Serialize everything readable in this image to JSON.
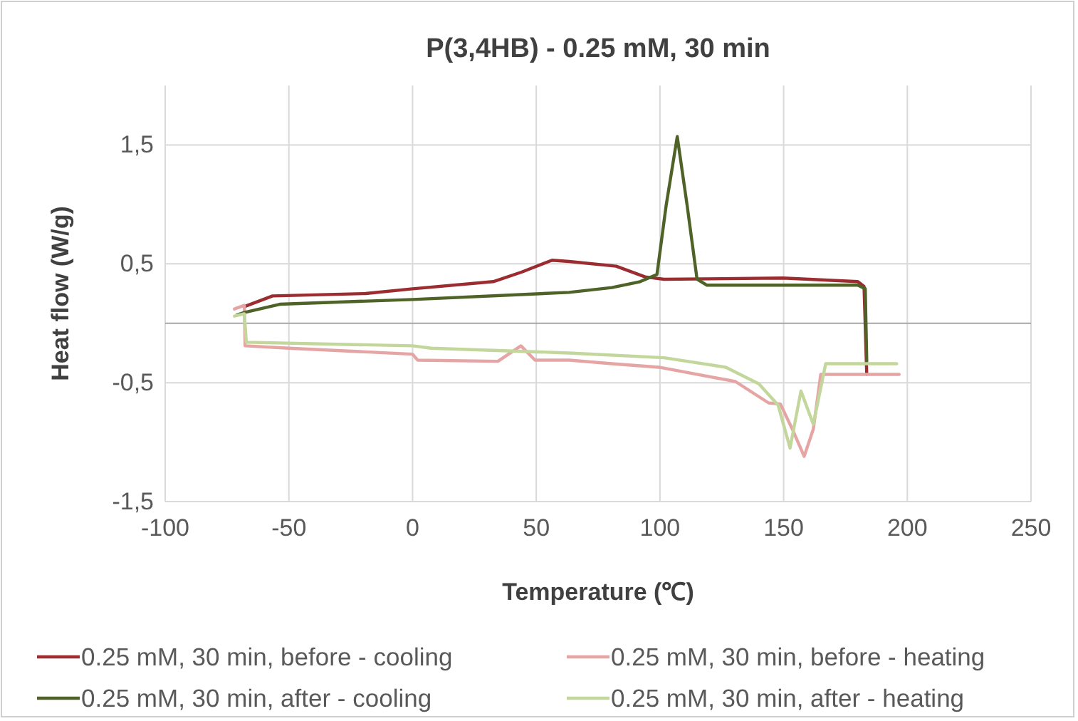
{
  "chart_data": {
    "type": "line",
    "title": "P(3,4HB) - 0.25 mM, 30 min",
    "xlabel": "Temperature (℃)",
    "ylabel": "Heat flow (W/g)",
    "xlim": [
      -100,
      250
    ],
    "xticks": [
      -100,
      -50,
      0,
      50,
      100,
      150,
      200,
      250
    ],
    "ylim": [
      -1.5,
      2
    ],
    "yticks": [
      {
        "value": -1.5,
        "label": "-1,5"
      },
      {
        "value": -0.5,
        "label": "-0,5"
      },
      {
        "value": 0.5,
        "label": "0,5"
      },
      {
        "value": 1.5,
        "label": "1,5"
      }
    ],
    "grid": true,
    "legend": "bottom",
    "marker": "none",
    "line_style": "solid",
    "series": [
      {
        "name": "0.25 mM, 30 min, before - cooling",
        "color": "#9b2d30",
        "x": [
          -68,
          -56.6,
          -19,
          0,
          32.6,
          44,
          56.4,
          63.3,
          82.3,
          94,
          101.7,
          149.7,
          180,
          182.5,
          183.6
        ],
        "values": [
          0.14,
          0.23,
          0.25,
          0.29,
          0.35,
          0.43,
          0.53,
          0.52,
          0.48,
          0.39,
          0.37,
          0.38,
          0.35,
          0.31,
          -0.43
        ]
      },
      {
        "name": "0.25 mM, 30 min, before - heating",
        "color": "#e6a5a5",
        "x": [
          -72,
          -68,
          -67.7,
          -50,
          0,
          2,
          34.5,
          43.8,
          49.5,
          63.3,
          80.6,
          99.6,
          130.5,
          143.9,
          148.7,
          153.5,
          158.3,
          162,
          165,
          196.7
        ],
        "values": [
          0.12,
          0.15,
          -0.19,
          -0.21,
          -0.26,
          -0.31,
          -0.32,
          -0.19,
          -0.31,
          -0.31,
          -0.34,
          -0.37,
          -0.49,
          -0.67,
          -0.68,
          -0.89,
          -1.12,
          -0.89,
          -0.43,
          -0.43
        ]
      },
      {
        "name": "0.25 mM, 30 min, after - cooling",
        "color": "#4f6228",
        "x": [
          -71,
          -68,
          -53.7,
          0,
          63.3,
          80.6,
          92,
          98.8,
          102.5,
          107,
          111,
          115,
          119,
          180,
          183,
          183.6
        ],
        "values": [
          0.07,
          0.09,
          0.16,
          0.2,
          0.26,
          0.3,
          0.35,
          0.41,
          0.99,
          1.57,
          0.99,
          0.37,
          0.32,
          0.32,
          0.29,
          -0.32
        ]
      },
      {
        "name": "0.25 mM, 30 min, after - heating",
        "color": "#c3d69b",
        "x": [
          -72,
          -68,
          -67.2,
          0,
          7.5,
          63.3,
          101.7,
          126.6,
          140,
          147.8,
          152.6,
          157,
          162,
          167,
          195.7
        ],
        "values": [
          0.06,
          0.08,
          -0.16,
          -0.19,
          -0.21,
          -0.25,
          -0.29,
          -0.37,
          -0.51,
          -0.69,
          -1.05,
          -0.57,
          -0.85,
          -0.34,
          -0.34
        ]
      }
    ]
  }
}
